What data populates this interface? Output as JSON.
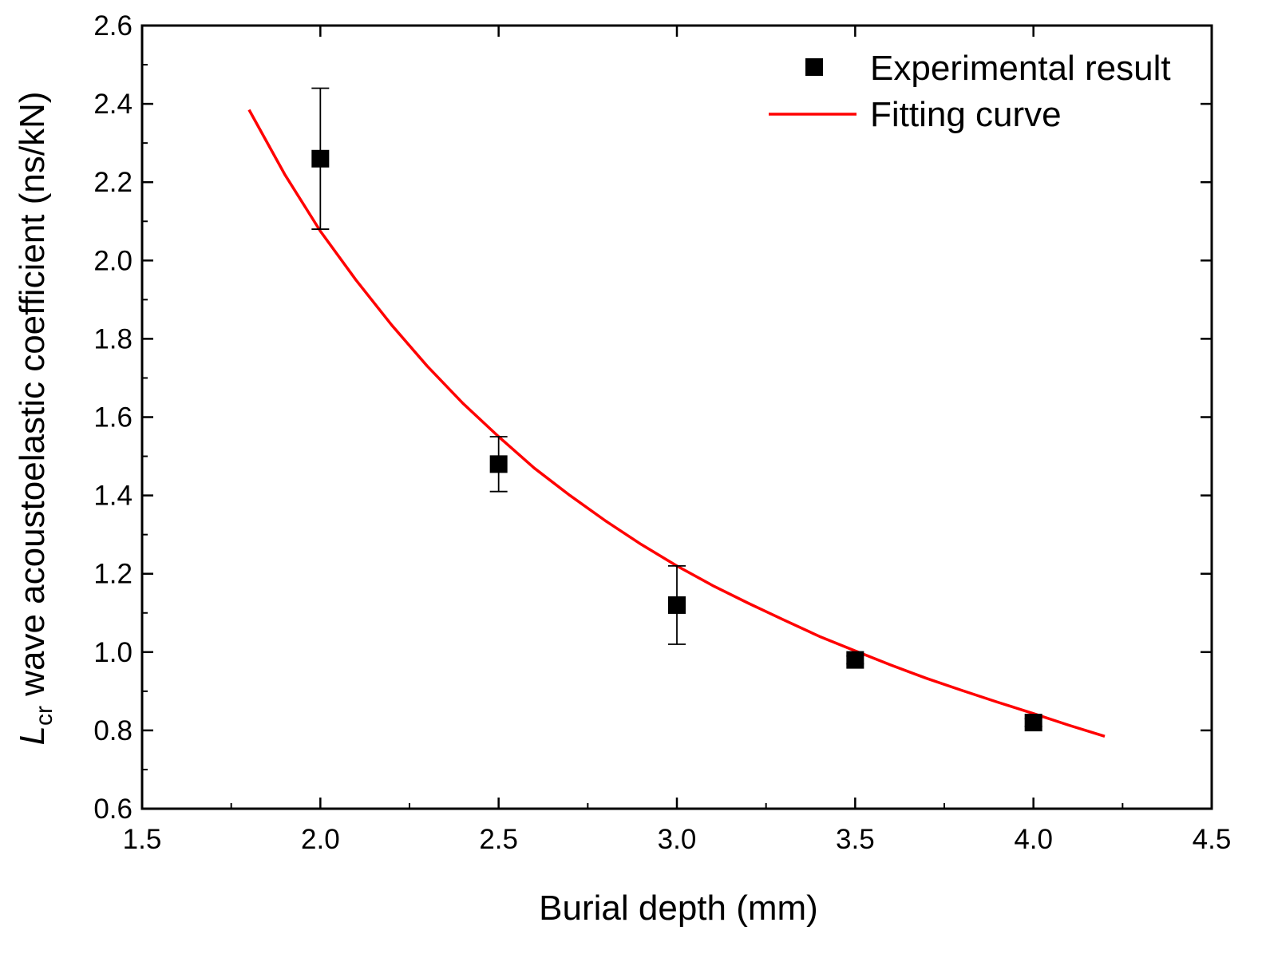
{
  "chart_data": {
    "type": "scatter",
    "xlabel": "Burial depth (mm)",
    "ylabel_main": "L",
    "ylabel_sub": "cr",
    "ylabel_rest": " wave acoustoelastic coefficient (ns/kN)",
    "xlim": [
      1.5,
      4.5
    ],
    "ylim": [
      0.6,
      2.6
    ],
    "xticks": [
      "1.5",
      "2.0",
      "2.5",
      "3.0",
      "3.5",
      "4.0",
      "4.5"
    ],
    "yticks": [
      "0.6",
      "0.8",
      "1.0",
      "1.2",
      "1.4",
      "1.6",
      "1.8",
      "2.0",
      "2.2",
      "2.4",
      "2.6"
    ],
    "grid": false,
    "legend_position": "top-right",
    "series": [
      {
        "name": "Experimental result",
        "kind": "scatter",
        "color": "#000000",
        "marker": "square",
        "x": [
          2.0,
          2.5,
          3.0,
          3.5,
          4.0
        ],
        "y": [
          2.26,
          1.48,
          1.12,
          0.98,
          0.82
        ],
        "err_low": [
          2.08,
          1.41,
          1.02,
          0.97,
          0.81
        ],
        "err_high": [
          2.44,
          1.55,
          1.22,
          0.99,
          0.83
        ]
      },
      {
        "name": "Fitting curve",
        "kind": "line",
        "color": "#ff0000",
        "x": [
          1.8,
          1.9,
          2.0,
          2.1,
          2.2,
          2.3,
          2.4,
          2.5,
          2.6,
          2.7,
          2.8,
          2.9,
          3.0,
          3.1,
          3.2,
          3.3,
          3.4,
          3.5,
          3.6,
          3.7,
          3.8,
          3.9,
          4.0,
          4.1,
          4.2
        ],
        "y": [
          2.385,
          2.22,
          2.075,
          1.95,
          1.835,
          1.73,
          1.635,
          1.55,
          1.47,
          1.4,
          1.335,
          1.275,
          1.22,
          1.17,
          1.125,
          1.082,
          1.04,
          1.003,
          0.967,
          0.933,
          0.902,
          0.872,
          0.843,
          0.813,
          0.785
        ]
      }
    ]
  }
}
